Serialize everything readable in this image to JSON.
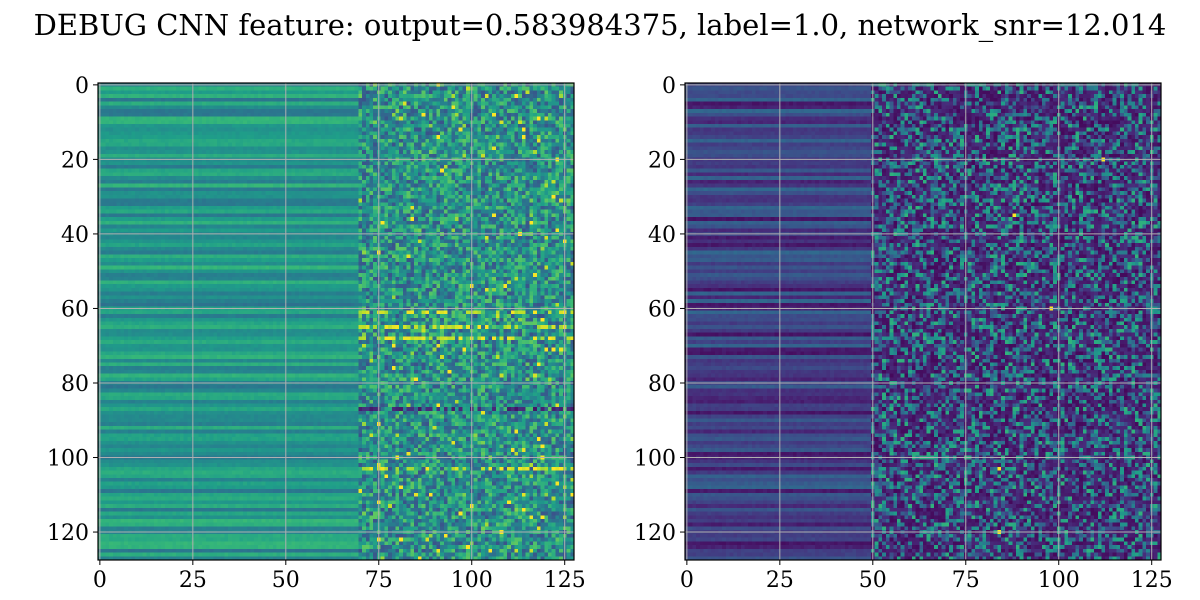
{
  "figure": {
    "title": "DEBUG CNN feature: output=0.583984375, label=1.0, network_snr=12.014"
  },
  "chart_data": [
    {
      "type": "heatmap",
      "title": "",
      "xlabel": "",
      "ylabel": "",
      "shape": [
        128,
        128
      ],
      "xlim": [
        -0.5,
        127.5
      ],
      "ylim": [
        127.5,
        -0.5
      ],
      "xticks": [
        0,
        25,
        50,
        75,
        100,
        125
      ],
      "yticks": [
        0,
        20,
        40,
        60,
        80,
        100,
        120
      ],
      "grid": true,
      "colormap": "viridis",
      "approx_values": {
        "cols_0_to_70": "smooth horizontal bands, teal to green, varying by row",
        "cols_70_to_127": "noisy, mixed dark blue to yellow",
        "bright_rows": [
          61,
          65,
          68,
          103
        ],
        "dark_rows": [
          87
        ]
      }
    },
    {
      "type": "heatmap",
      "title": "",
      "xlabel": "",
      "ylabel": "",
      "shape": [
        128,
        128
      ],
      "xlim": [
        -0.5,
        127.5
      ],
      "ylim": [
        127.5,
        -0.5
      ],
      "xticks": [
        0,
        25,
        50,
        75,
        100,
        125
      ],
      "yticks": [
        0,
        20,
        40,
        60,
        80,
        100,
        120
      ],
      "grid": true,
      "colormap": "viridis",
      "approx_values": {
        "cols_0_to_50": "dark purple to blue horizontal bands",
        "cols_50_to_127": "noisy, mostly dark purple with teal/green speckles and rare yellow pixels",
        "hot_pixels": [
          [
            88,
            35
          ],
          [
            84,
            103
          ],
          [
            84,
            120
          ],
          [
            98,
            60
          ],
          [
            112,
            20
          ]
        ]
      }
    }
  ]
}
